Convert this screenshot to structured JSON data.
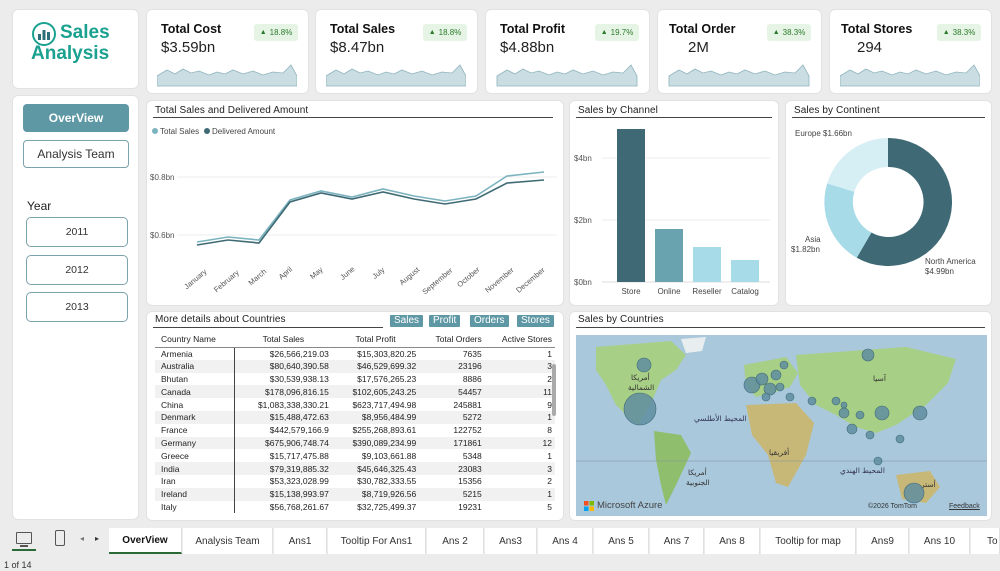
{
  "logo": {
    "line1": "Sales",
    "line2": "Analysis",
    "icon": "bar-chart-icon"
  },
  "kpis": [
    {
      "title": "Total Cost",
      "value": "$3.59bn",
      "change": "18.8%"
    },
    {
      "title": "Total Sales",
      "value": "$8.47bn",
      "change": "18.8%"
    },
    {
      "title": "Total Profit",
      "value": "$4.88bn",
      "change": "19.7%"
    },
    {
      "title": "Total Order",
      "value": "2M",
      "change": "38.3%"
    },
    {
      "title": "Total Stores",
      "value": "294",
      "change": "38.3%"
    }
  ],
  "nav": {
    "overview": "OverView",
    "team": "Analysis Team"
  },
  "year": {
    "label": "Year",
    "options": [
      "2011",
      "2012",
      "2013"
    ]
  },
  "line_chart": {
    "title": "Total Sales and Delivered Amount",
    "legend": [
      "Total Sales",
      "Delivered Amount"
    ],
    "yticks": [
      "$0.8bn",
      "$0.6bn"
    ],
    "months": [
      "January",
      "February",
      "March",
      "April",
      "May",
      "June",
      "July",
      "August",
      "September",
      "October",
      "November",
      "December"
    ]
  },
  "channel_chart": {
    "title": "Sales by Channel",
    "yticks": [
      "$4bn",
      "$2bn",
      "$0bn"
    ],
    "categories": [
      "Store",
      "Online",
      "Reseller",
      "Catalog"
    ]
  },
  "continent_chart": {
    "title": "Sales by Continent",
    "labels": {
      "europe": "Europe $1.66bn",
      "asia1": "Asia",
      "asia2": "$1.82bn",
      "na1": "North America",
      "na2": "$4.99bn"
    }
  },
  "table_section": {
    "title": "More details about Countries",
    "buttons": [
      "Sales",
      "Profit",
      "Orders",
      "Stores"
    ],
    "columns": [
      "Country Name",
      "Total Sales",
      "Total Profit",
      "Total Orders",
      "Active Stores"
    ],
    "rows": [
      [
        "Armenia",
        "$26,566,219.03",
        "$15,303,820.25",
        "7635",
        "1"
      ],
      [
        "Australia",
        "$80,640,390.58",
        "$46,529,699.32",
        "23196",
        "3"
      ],
      [
        "Bhutan",
        "$30,539,938.13",
        "$17,576,265.23",
        "8886",
        "2"
      ],
      [
        "Canada",
        "$178,096,816.15",
        "$102,605,243.25",
        "54457",
        "11"
      ],
      [
        "China",
        "$1,083,338,330.21",
        "$623,717,494.98",
        "245881",
        "9"
      ],
      [
        "Denmark",
        "$15,488,472.63",
        "$8,956,484.99",
        "5272",
        "1"
      ],
      [
        "France",
        "$442,579,166.9",
        "$255,268,893.61",
        "122752",
        "8"
      ],
      [
        "Germany",
        "$675,906,748.74",
        "$390,089,234.99",
        "171861",
        "12"
      ],
      [
        "Greece",
        "$15,717,475.88",
        "$9,103,661.88",
        "5348",
        "1"
      ],
      [
        "India",
        "$79,319,885.32",
        "$45,646,325.43",
        "23083",
        "3"
      ],
      [
        "Iran",
        "$53,323,028.99",
        "$30,782,333.55",
        "15356",
        "2"
      ],
      [
        "Ireland",
        "$15,138,993.97",
        "$8,719,926.56",
        "5215",
        "1"
      ],
      [
        "Italy",
        "$56,768,261.67",
        "$32,725,499.37",
        "19231",
        "5"
      ]
    ]
  },
  "map": {
    "title": "Sales by Countries",
    "labels": {
      "na_ar": "أمريكا",
      "na_ar2": "الشمالية",
      "atlantic": "المحيط الأطلسي",
      "africa": "أفريقيا",
      "sa_ar": "أمريكا",
      "sa_ar2": "الجنوبية",
      "indian": "المحيط الهندي",
      "asia_ar": "آسيا",
      "aus_ar": "أستر"
    },
    "brand": "Microsoft Azure",
    "copyright": "©2026 TomTom",
    "feedback": "Feedback"
  },
  "tabs": [
    "OverView",
    "Analysis Team",
    "Ans1",
    "Tooltip For Ans1",
    "Ans 2",
    "Ans3",
    "Ans 4",
    "Ans 5",
    "Ans 7",
    "Ans 8",
    "Tooltip for map",
    "Ans9",
    "Ans 10",
    "To"
  ],
  "status": "1 of 14",
  "colors": {
    "teal_dark": "#3f6a75",
    "teal_mid": "#6aa3b0",
    "teal_light": "#a8dbe8",
    "accent": "#1aa18f"
  }
}
